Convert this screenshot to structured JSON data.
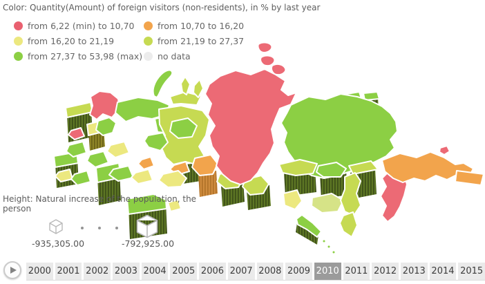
{
  "color_legend": {
    "title": "Color: Quantity(Amount) of foreign visitors (non-residents), in % by last year",
    "items": [
      {
        "label": "from 6,22 (min) to 10,70",
        "color": "#e96070"
      },
      {
        "label": "from 10,70 to 16,20",
        "color": "#f2a44c"
      },
      {
        "label": "from 16,20 to 21,19",
        "color": "#ece87f"
      },
      {
        "label": "from 21,19 to 27,37",
        "color": "#c6da52"
      },
      {
        "label": "from 27,37 to 53,98 (max)",
        "color": "#8ccf44"
      },
      {
        "label": "no data",
        "color": "#ececec"
      }
    ]
  },
  "height_legend": {
    "title": "Height: Natural increase of the population, the person",
    "min_label": "-935,305.00",
    "max_label": "-792,925.00"
  },
  "timeline": {
    "years": [
      "2000",
      "2001",
      "2002",
      "2003",
      "2004",
      "2005",
      "2006",
      "2007",
      "2008",
      "2009",
      "2010",
      "2011",
      "2012",
      "2013",
      "2014",
      "2015"
    ],
    "selected": "2010"
  },
  "icons": {
    "play": "triangle-right",
    "height_min": "small-cube",
    "height_max": "large-cube"
  },
  "palette": {
    "red": "#ec6a75",
    "orange": "#f2a44c",
    "yellow": "#ece87f",
    "yellowGreen": "#c6da52",
    "green": "#8ccf44",
    "paleGreen": "#d6e387",
    "noData": "#ececec",
    "wallBase": "#41541a",
    "wallStripe": "#6f8d2a",
    "wallOliveBase": "#6f6619",
    "wallOliveStripe": "#a59b31",
    "wallOrangeBase": "#b5762c",
    "wallOrangeStripe": "#e09a4a"
  },
  "ui": {
    "selected_year_bg": "#9b9b9b",
    "year_bg": "#eaeaea",
    "cube_stroke": "#b9b9b9",
    "dot_color": "#949494"
  }
}
